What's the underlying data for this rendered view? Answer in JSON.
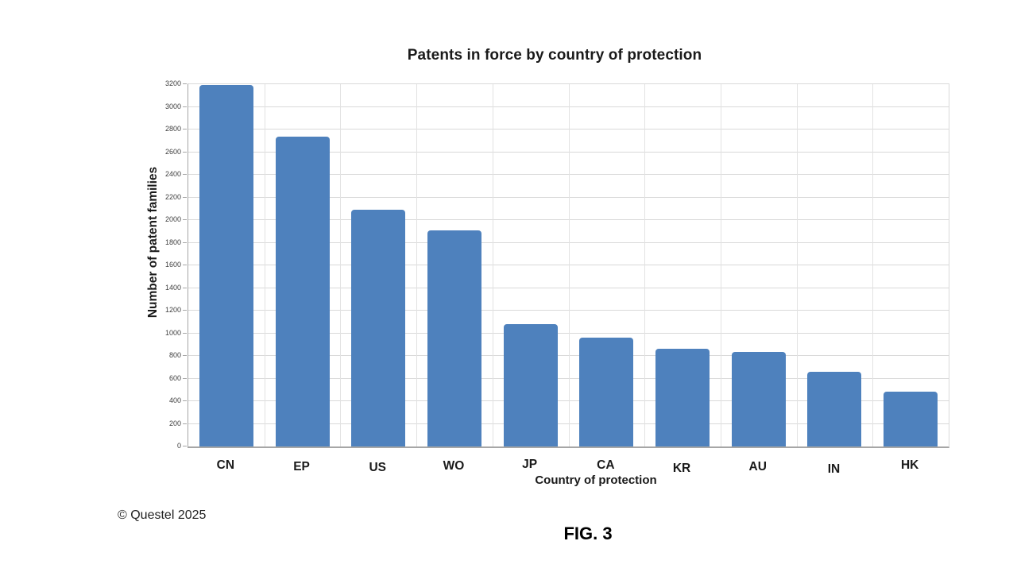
{
  "chart_data": {
    "type": "bar",
    "title": "Patents in force by country of protection",
    "categories": [
      "CN",
      "EP",
      "US",
      "WO",
      "JP",
      "CA",
      "KR",
      "AU",
      "IN",
      "HK"
    ],
    "values": [
      3190,
      2740,
      2090,
      1910,
      1080,
      960,
      860,
      835,
      660,
      485
    ],
    "xlabel": "Country of protection",
    "ylabel": "Number of patent families",
    "ylim": [
      0,
      3200
    ],
    "ytick_step": 200,
    "yticks": [
      0,
      200,
      400,
      600,
      800,
      1000,
      1200,
      1400,
      1600,
      1800,
      2000,
      2200,
      2400,
      2600,
      2800,
      3000,
      3200
    ],
    "grid": true,
    "legend": "none",
    "bar_color": "#4E81BD",
    "grid_color": "#D9D9D9",
    "axis_color": "#A6A6A6"
  },
  "footer": {
    "copyright": "© Questel 2025",
    "figure_label": "FIG. 3"
  }
}
